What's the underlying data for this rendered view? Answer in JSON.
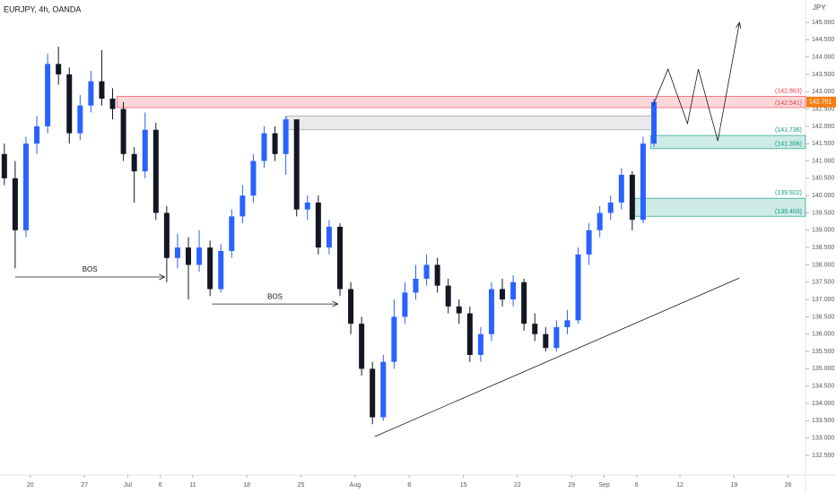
{
  "chart_data": {
    "type": "candlestick",
    "title": "EURJPY, 4h, OANDA",
    "y_axis_label": "JPY",
    "up_color": "#2962ff",
    "down_color": "#131722",
    "x": [
      -2.4,
      -1.4,
      -0.4,
      0.6,
      1.6,
      2.6,
      3.6,
      4.6,
      5.6,
      6.6,
      7.6,
      8.6,
      9.6,
      10.6,
      11.6,
      12.6,
      13.6,
      14.6,
      15.6,
      16.6,
      17.6,
      18.6,
      19.6,
      20.6,
      21.6,
      22.6,
      23.6,
      24.6,
      25.6,
      26.6,
      27.6,
      28.6,
      29.6,
      30.6,
      31.6,
      32.6,
      33.6,
      34.6,
      35.6,
      36.6,
      37.6,
      38.6,
      39.6,
      40.6,
      41.6,
      42.6,
      43.6,
      44.6,
      45.6,
      46.6,
      47.6,
      48.6,
      49.6,
      50.6,
      51.6,
      52.6,
      53.6,
      54.6,
      55.6,
      56.6,
      57.6
    ],
    "open": [
      141.2,
      140.5,
      139.0,
      141.5,
      142.0,
      143.8,
      143.5,
      141.8,
      142.6,
      143.3,
      142.8,
      142.5,
      141.2,
      140.7,
      141.9,
      139.5,
      138.2,
      138.5,
      138.0,
      138.5,
      137.3,
      138.4,
      139.4,
      140.0,
      141.0,
      141.8,
      141.2,
      142.2,
      139.6,
      139.8,
      138.5,
      139.1,
      137.3,
      136.3,
      135.0,
      133.6,
      135.2,
      136.5,
      137.2,
      137.6,
      138.0,
      137.4,
      136.8,
      136.6,
      135.4,
      136.0,
      137.3,
      137.0,
      137.5,
      136.3,
      136.0,
      135.6,
      136.2,
      136.4,
      138.3,
      139.0,
      139.5,
      139.8,
      140.6,
      139.3,
      141.5
    ],
    "high": [
      141.5,
      141.0,
      141.7,
      142.3,
      144.1,
      144.3,
      143.7,
      142.9,
      143.6,
      144.2,
      143.1,
      142.7,
      141.4,
      142.4,
      142.1,
      139.7,
      138.9,
      138.8,
      139.0,
      138.7,
      138.6,
      139.6,
      140.3,
      141.2,
      142.0,
      142.0,
      142.3,
      142.2,
      140.0,
      140.0,
      139.3,
      139.2,
      137.5,
      136.5,
      135.2,
      135.4,
      137.0,
      137.5,
      138.0,
      138.3,
      138.2,
      137.6,
      137.0,
      136.8,
      136.2,
      137.5,
      137.6,
      137.7,
      137.6,
      136.6,
      136.2,
      136.4,
      136.7,
      138.5,
      139.2,
      139.7,
      140.0,
      140.8,
      140.7,
      141.7,
      142.8
    ],
    "low": [
      140.3,
      137.9,
      138.8,
      141.2,
      141.8,
      143.2,
      141.5,
      141.6,
      142.4,
      142.6,
      142.2,
      141.0,
      139.8,
      140.5,
      139.3,
      137.5,
      137.9,
      137.0,
      137.8,
      137.1,
      137.2,
      138.2,
      139.2,
      139.8,
      140.8,
      141.0,
      140.6,
      139.4,
      139.3,
      138.3,
      138.3,
      137.1,
      136.0,
      134.8,
      133.4,
      133.5,
      135.0,
      136.3,
      137.0,
      137.4,
      137.2,
      136.6,
      136.3,
      135.2,
      135.2,
      135.8,
      136.8,
      136.8,
      136.1,
      135.8,
      135.5,
      135.5,
      136.0,
      136.3,
      138.0,
      138.8,
      139.3,
      139.6,
      139.0,
      139.2,
      141.4
    ],
    "close": [
      140.5,
      139.0,
      141.5,
      142.0,
      143.8,
      143.5,
      141.8,
      142.6,
      143.3,
      142.8,
      142.5,
      141.2,
      140.7,
      141.9,
      139.5,
      138.2,
      138.5,
      138.0,
      138.5,
      137.3,
      138.4,
      139.4,
      140.0,
      141.0,
      141.8,
      141.2,
      142.2,
      139.6,
      139.8,
      138.5,
      139.1,
      137.3,
      136.3,
      135.0,
      133.6,
      135.2,
      136.5,
      137.2,
      137.6,
      138.0,
      137.4,
      136.8,
      136.6,
      135.4,
      136.0,
      137.3,
      137.0,
      137.5,
      136.3,
      136.0,
      135.6,
      136.2,
      136.4,
      138.3,
      139.0,
      139.5,
      139.8,
      140.6,
      139.3,
      141.5,
      142.7
    ],
    "xlim": [
      -2.8,
      71.6
    ],
    "xticks": [
      {
        "value": 0,
        "label": "20"
      },
      {
        "value": 5,
        "label": "27"
      },
      {
        "value": 9,
        "label": "Jul"
      },
      {
        "value": 12,
        "label": "6"
      },
      {
        "value": 15,
        "label": "11"
      },
      {
        "value": 20,
        "label": "18"
      },
      {
        "value": 25,
        "label": "25"
      },
      {
        "value": 30,
        "label": "Aug"
      },
      {
        "value": 35,
        "label": "8"
      },
      {
        "value": 40,
        "label": "15"
      },
      {
        "value": 45,
        "label": "22"
      },
      {
        "value": 50,
        "label": "29"
      },
      {
        "value": 53,
        "label": "Sep"
      },
      {
        "value": 56,
        "label": "6"
      },
      {
        "value": 60,
        "label": "12"
      },
      {
        "value": 65,
        "label": "19"
      },
      {
        "value": 70,
        "label": "26"
      }
    ],
    "ylim": [
      132.5,
      145.0
    ],
    "yticks": [
      {
        "value": 132.5,
        "label": "132.500"
      },
      {
        "value": 133,
        "label": "133.000"
      },
      {
        "value": 133.5,
        "label": "133.500"
      },
      {
        "value": 134,
        "label": "134.000"
      },
      {
        "value": 134.5,
        "label": "134.500"
      },
      {
        "value": 135,
        "label": "135.000"
      },
      {
        "value": 135.5,
        "label": "135.500"
      },
      {
        "value": 136,
        "label": "136.000"
      },
      {
        "value": 136.5,
        "label": "136.500"
      },
      {
        "value": 137,
        "label": "137.000"
      },
      {
        "value": 137.5,
        "label": "137.500"
      },
      {
        "value": 138,
        "label": "138.000"
      },
      {
        "value": 138.5,
        "label": "138.500"
      },
      {
        "value": 139,
        "label": "139.000"
      },
      {
        "value": 139.5,
        "label": "139.500"
      },
      {
        "value": 140,
        "label": "140.000"
      },
      {
        "value": 140.5,
        "label": "140.500"
      },
      {
        "value": 141,
        "label": "141.000"
      },
      {
        "value": 141.5,
        "label": "141.500"
      },
      {
        "value": 142,
        "label": "142.000"
      },
      {
        "value": 142.5,
        "label": "142.500"
      },
      {
        "value": 143,
        "label": "143.000"
      },
      {
        "value": 143.5,
        "label": "143.500"
      },
      {
        "value": 144,
        "label": "144.000"
      },
      {
        "value": 144.5,
        "label": "144.500"
      },
      {
        "value": 145,
        "label": "145.000"
      }
    ],
    "last_price": {
      "value": 142.701,
      "label": "142.701",
      "color": "#f57f17"
    },
    "zones": [
      {
        "from": 8.0,
        "values": [
          142.863,
          142.541
        ],
        "value_labels": [
          "(142.863)",
          "(142.541)"
        ],
        "color": "#f23645"
      },
      {
        "from": 23.7,
        "to": 57.5,
        "values": [
          142.3,
          141.9
        ],
        "color": "#9598a1"
      },
      {
        "from": 57.3,
        "values": [
          141.736,
          141.356
        ],
        "value_labels": [
          "(141.736)",
          "(141.356)"
        ],
        "color": "#089981"
      },
      {
        "from": 55.8,
        "values": [
          139.922,
          139.403
        ],
        "value_labels": [
          "(139.922)",
          "(139.403)"
        ],
        "color": "#089981"
      }
    ],
    "bos": [
      {
        "label": "BOS",
        "x": [
          -1.4,
          12.4
        ],
        "value": 137.65
      },
      {
        "label": "BOS",
        "x": [
          16.8,
          28.4
        ],
        "value": 136.87
      }
    ],
    "trendline": {
      "x": [
        31.8,
        65.5
      ],
      "values": [
        133.04,
        137.62
      ]
    },
    "projection": {
      "x": [
        57.5,
        58.9,
        60.7,
        61.7,
        63.5,
        65.5
      ],
      "values": [
        142.59,
        143.65,
        142.08,
        143.65,
        141.58,
        145.0
      ]
    }
  }
}
